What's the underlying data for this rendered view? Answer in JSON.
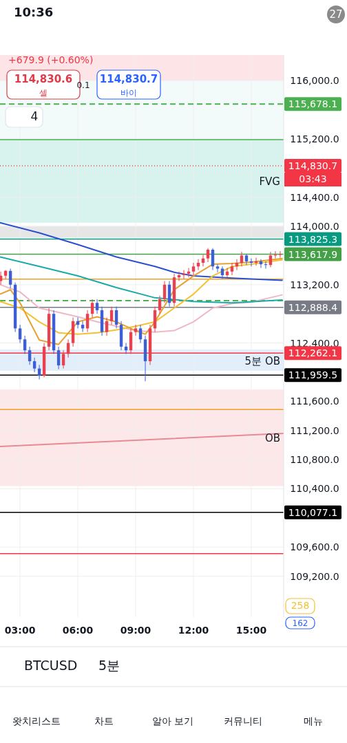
{
  "chart_data": {
    "type": "candlestick",
    "x": [
      2.0,
      2.25,
      2.5,
      2.75,
      3.0,
      3.25,
      3.5,
      3.75,
      4.0,
      4.25,
      4.5,
      4.75,
      5.0,
      5.25,
      5.5,
      5.75,
      6.0,
      6.25,
      6.5,
      6.75,
      7.0,
      7.25,
      7.5,
      7.75,
      8.0,
      8.25,
      8.5,
      8.75,
      9.0,
      9.25,
      9.5,
      9.75,
      10.0,
      10.25,
      10.5,
      10.75,
      11.0,
      11.25,
      11.5,
      11.75,
      12.0,
      12.25,
      12.5,
      12.75,
      13.0,
      13.25,
      13.5,
      13.75,
      14.0,
      14.25,
      14.5,
      14.75,
      15.0,
      15.25,
      15.5,
      15.75,
      16.0,
      16.25,
      16.5
    ],
    "ohlc": [
      [
        113250,
        113380,
        113200,
        113323
      ],
      [
        113323,
        113400,
        113280,
        113389
      ],
      [
        113389,
        113420,
        113150,
        113200
      ],
      [
        113200,
        113230,
        112550,
        112600
      ],
      [
        112600,
        112650,
        112400,
        112450
      ],
      [
        112450,
        112500,
        112250,
        112300
      ],
      [
        112300,
        112350,
        112100,
        112150
      ],
      [
        112150,
        112200,
        112000,
        112050
      ],
      [
        112050,
        112100,
        111900,
        111950
      ],
      [
        111950,
        112400,
        111930,
        112350
      ],
      [
        112350,
        112878,
        112300,
        112800
      ],
      [
        112800,
        112850,
        112250,
        112300
      ],
      [
        112300,
        112350,
        112040,
        112093
      ],
      [
        112093,
        112300,
        112050,
        112250
      ],
      [
        112250,
        112450,
        112200,
        112400
      ],
      [
        112400,
        112750,
        112350,
        112700
      ],
      [
        112700,
        112750,
        112600,
        112650
      ],
      [
        112650,
        112700,
        112550,
        112600
      ],
      [
        112600,
        112850,
        112550,
        112800
      ],
      [
        112800,
        113000,
        112750,
        112950
      ],
      [
        112950,
        113000,
        112800,
        112850
      ],
      [
        112850,
        112900,
        112500,
        112550
      ],
      [
        112550,
        112750,
        112500,
        112700
      ],
      [
        112700,
        112900,
        112650,
        112850
      ],
      [
        112850,
        112900,
        112600,
        112650
      ],
      [
        112650,
        112700,
        112300,
        112350
      ],
      [
        112350,
        112400,
        112250,
        112300
      ],
      [
        112300,
        112600,
        112250,
        112550
      ],
      [
        112550,
        112650,
        112500,
        112600
      ],
      [
        112600,
        112650,
        112400,
        112450
      ],
      [
        112450,
        112500,
        111875,
        112150
      ],
      [
        112150,
        112650,
        112100,
        112600
      ],
      [
        112600,
        112900,
        112550,
        112850
      ],
      [
        112850,
        113050,
        112800,
        113000
      ],
      [
        113000,
        113250,
        112950,
        113200
      ],
      [
        113200,
        113250,
        112900,
        112950
      ],
      [
        112950,
        113350,
        112900,
        113300
      ],
      [
        113300,
        113380,
        113250,
        113330
      ],
      [
        113330,
        113400,
        113280,
        113350
      ],
      [
        113350,
        113430,
        113300,
        113380
      ],
      [
        113380,
        113500,
        113330,
        113450
      ],
      [
        113450,
        113550,
        113400,
        113500
      ],
      [
        113500,
        113610,
        113450,
        113560
      ],
      [
        113560,
        113701,
        113510,
        113680
      ],
      [
        113680,
        113700,
        113400,
        113450
      ],
      [
        113450,
        113480,
        113370,
        113420
      ],
      [
        113420,
        113450,
        113280,
        113330
      ],
      [
        113330,
        113430,
        113300,
        113380
      ],
      [
        113380,
        113500,
        113330,
        113450
      ],
      [
        113450,
        113550,
        113400,
        113500
      ],
      [
        113500,
        113650,
        113450,
        113600
      ],
      [
        113600,
        113620,
        113470,
        113520
      ],
      [
        113520,
        113560,
        113450,
        113500
      ],
      [
        113500,
        113570,
        113460,
        113520
      ],
      [
        113520,
        113550,
        113430,
        113480
      ],
      [
        113480,
        113520,
        113420,
        113470
      ],
      [
        113470,
        113650,
        113440,
        113600
      ],
      [
        113600,
        113660,
        113560,
        113610
      ],
      [
        113610,
        113660,
        113570,
        113618
      ]
    ],
    "colors": [
      "#e8414f",
      "#e8414f",
      "#3d5fd6",
      "#3d5fd6",
      "#3d5fd6",
      "#3d5fd6",
      "#3d5fd6",
      "#3d5fd6",
      "#3d5fd6",
      "#e8414f",
      "#e8414f",
      "#3d5fd6",
      "#3d5fd6",
      "#e8414f",
      "#e8414f",
      "#e8414f",
      "#3d5fd6",
      "#3d5fd6",
      "#e8414f",
      "#e8414f",
      "#3d5fd6",
      "#3d5fd6",
      "#e8414f",
      "#e8414f",
      "#3d5fd6",
      "#3d5fd6",
      "#3d5fd6",
      "#e8414f",
      "#e8414f",
      "#3d5fd6",
      "#3d5fd6",
      "#e8414f",
      "#e8414f",
      "#e8414f",
      "#e8414f",
      "#3d5fd6",
      "#e8414f",
      "#e8414f",
      "#e8414f",
      "#e8414f",
      "#e8414f",
      "#e8414f",
      "#e8414f",
      "#e8414f",
      "#3d5fd6",
      "#3d5fd6",
      "#3d5fd6",
      "#e8414f",
      "#e8414f",
      "#e8414f",
      "#e8414f",
      "#3d5fd6",
      "#3d5fd6",
      "#e8414f",
      "#3d5fd6",
      "#3d5fd6",
      "#e8414f",
      "#e8414f",
      "#e8414f"
    ],
    "series": [
      {
        "type": "line",
        "color": "#f0b8c6",
        "x": [
          1.96,
          3,
          4,
          5,
          6,
          7,
          8,
          9,
          10,
          11,
          12,
          13,
          14,
          15,
          16.6
        ],
        "values": [
          113200,
          113100,
          112880,
          112820,
          112760,
          112690,
          112630,
          112570,
          112550,
          112570,
          112690,
          112880,
          112940,
          112960,
          113060
        ]
      },
      {
        "type": "line",
        "color": "#1ba9a9",
        "x": [
          1.96,
          4,
          6,
          8,
          10,
          12,
          14,
          16.6
        ],
        "values": [
          113580,
          113450,
          113320,
          113160,
          113020,
          112970,
          112950,
          112990
        ]
      },
      {
        "type": "line",
        "color": "#2b4fd1",
        "x": [
          1.96,
          4,
          6,
          8,
          10,
          11,
          12,
          14,
          16.6
        ],
        "values": [
          114050,
          113910,
          113750,
          113580,
          113450,
          113370,
          113320,
          113290,
          113260
        ]
      },
      {
        "type": "line",
        "color": "#f2c230",
        "x": [
          1.96,
          3,
          4,
          5,
          6,
          7,
          8,
          9,
          10,
          11,
          12,
          13,
          14,
          15,
          16.6
        ],
        "values": [
          112970,
          112880,
          112690,
          112540,
          112520,
          112540,
          112580,
          112630,
          112690,
          112880,
          113070,
          113320,
          113450,
          113480,
          113540
        ]
      },
      {
        "type": "line",
        "color": "#e8a030",
        "x": [
          1.96,
          2.5,
          3,
          4,
          5,
          6,
          7,
          8,
          9,
          9.5,
          10,
          11,
          12,
          13,
          14,
          15,
          16.6
        ],
        "values": [
          113070,
          113130,
          112950,
          112440,
          112380,
          112690,
          112760,
          112690,
          112570,
          112520,
          112690,
          113130,
          113320,
          113480,
          113490,
          113510,
          113560
        ]
      },
      {
        "type": "line",
        "color": "#e88a94",
        "x": [
          1.96,
          16.68
        ],
        "values": [
          110980,
          111160
        ]
      }
    ],
    "xlim": [
      1.96,
      16.68
    ],
    "xticks": [
      {
        "value": 3,
        "label": "03:00"
      },
      {
        "value": 6,
        "label": "06:00"
      },
      {
        "value": 9,
        "label": "09:00"
      },
      {
        "value": 12,
        "label": "12:00"
      },
      {
        "value": 15,
        "label": "15:00"
      }
    ],
    "ylim": [
      108640,
      116350
    ],
    "yticks": [
      {
        "value": 116000,
        "label": "116,000.0"
      },
      {
        "value": 115200,
        "label": "115,200.0"
      },
      {
        "value": 114400,
        "label": "114,400.0"
      },
      {
        "value": 114000,
        "label": "114,000.0"
      },
      {
        "value": 113200,
        "label": "113,200.0"
      },
      {
        "value": 112400,
        "label": "112,400.0"
      },
      {
        "value": 111600,
        "label": "111,600.0"
      },
      {
        "value": 111200,
        "label": "111,200.0"
      },
      {
        "value": 110800,
        "label": "110,800.0"
      },
      {
        "value": 110400,
        "label": "110,400.0"
      },
      {
        "value": 109600,
        "label": "109,600.0"
      },
      {
        "value": 109200,
        "label": "109,200.0"
      }
    ],
    "tick_labels": "xy",
    "grid": true,
    "bands": [
      {
        "axis": "y",
        "from": 116000,
        "to": 116350,
        "color": "#fde4e6"
      },
      {
        "axis": "y",
        "from": 115190,
        "to": 116000,
        "color": "#f2fbfa"
      },
      {
        "axis": "y",
        "from": 114050,
        "to": 115190,
        "color": "#d8f3ee",
        "label": "FVG"
      },
      {
        "axis": "y",
        "from": 113843,
        "to": 114004,
        "color": "#e6e6e6"
      },
      {
        "axis": "y",
        "from": 112018,
        "to": 112310,
        "color": "#e3eefb",
        "label": "5분 OB"
      },
      {
        "axis": "y",
        "from": 110437,
        "to": 111762,
        "color": "#fde8e9",
        "label": "OB"
      }
    ],
    "ref_lines": [
      {
        "axis": "y",
        "value": 115678.1,
        "label": "115,678.1",
        "color": "#4caf50",
        "line_style": "dashed"
      },
      {
        "axis": "y",
        "value": 115190,
        "color": "#4caf50",
        "line_style": "solid"
      },
      {
        "axis": "y",
        "value": 114830.7,
        "label": "114,830.7",
        "color": "#f23645",
        "line_style": "dotted"
      },
      {
        "axis": "y",
        "value": 113825.3,
        "label": "113,825.3",
        "color": "#089981",
        "line_style": "solid"
      },
      {
        "axis": "y",
        "value": 113617.9,
        "label": "113,617.9",
        "color": "#43a047",
        "line_style": "solid"
      },
      {
        "axis": "y",
        "value": 113276,
        "color": "#f0a020",
        "line_style": "solid"
      },
      {
        "axis": "y",
        "value": 112982,
        "color": "#4caf50",
        "line_style": "dashed"
      },
      {
        "axis": "y",
        "value": 112888.4,
        "label": "112,888.4",
        "color": "#787b86",
        "line_style": "solid"
      },
      {
        "axis": "y",
        "value": 112262.1,
        "label": "112,262.1",
        "color": "#f23645",
        "line_style": "solid"
      },
      {
        "axis": "y",
        "value": 111959.5,
        "label": "111,959.5",
        "color": "#000000",
        "line_style": "solid"
      },
      {
        "axis": "y",
        "value": 111488,
        "color": "#f0a020",
        "line_style": "solid"
      },
      {
        "axis": "y",
        "value": 110077.1,
        "label": "110,077.1",
        "color": "#000000",
        "line_style": "solid"
      },
      {
        "axis": "y",
        "value": 109510,
        "color": "#f23645",
        "line_style": "solid"
      }
    ],
    "annotations": [
      "10:36",
      "27",
      "+679.9 (+0.60%)",
      "114,830.6",
      "셀",
      "0.1",
      "114,830.7",
      "바이",
      "4",
      "03:43",
      "BTCUSD",
      "5분",
      "왓치리스트",
      "차트",
      "알아 보기",
      "커뮤니티",
      "메뉴",
      "258",
      "162"
    ]
  }
}
